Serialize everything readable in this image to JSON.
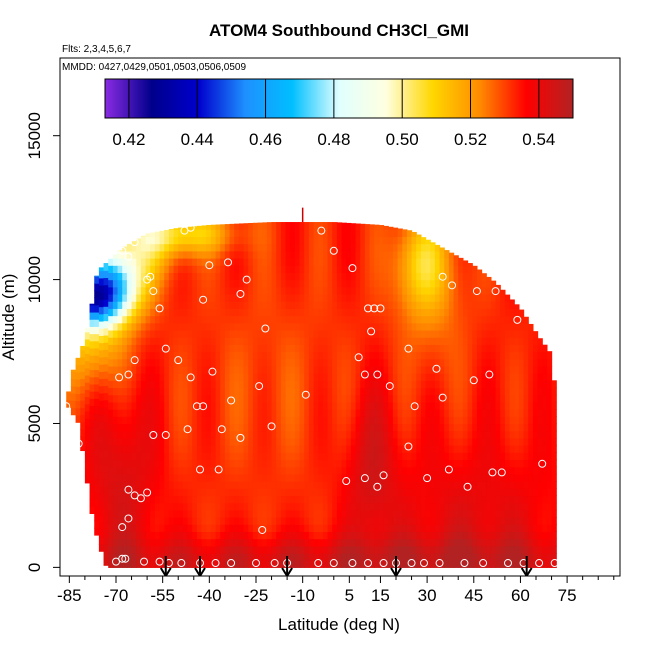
{
  "chart_data": {
    "type": "heatmap",
    "title": "ATOM4 Southbound CH3Cl_GMI",
    "subtitle_flights": "Flts: 2,3,4,5,6,7",
    "subtitle_dates": "MMDD: 0427,0429,0501,0503,0506,0509",
    "xlabel": "Latitude (deg N)",
    "ylabel": "Altitude (m)",
    "xlim": [
      -88,
      92
    ],
    "ylim": [
      -300,
      17700
    ],
    "x_ticks": [
      -85,
      -70,
      -55,
      -40,
      -25,
      -10,
      5,
      15,
      30,
      45,
      60,
      75
    ],
    "x_tick_labels": [
      "-85",
      "-70",
      "-55",
      "-40",
      "-25",
      "-10",
      "5",
      "15",
      "30",
      "45",
      "60",
      "75"
    ],
    "x_minor_ticks": [
      -80,
      -75,
      -65,
      -60,
      -50,
      -45,
      -35,
      -30,
      -20,
      -15,
      -5,
      0,
      10,
      20,
      25,
      35,
      40,
      50,
      55,
      65,
      70,
      80,
      85,
      90
    ],
    "y_ticks": [
      0,
      5000,
      10000,
      15000
    ],
    "y_tick_labels": [
      "0",
      "5000",
      "10000",
      "15000"
    ],
    "colorbar": {
      "range": [
        0.413,
        0.55
      ],
      "ticks": [
        0.42,
        0.44,
        0.46,
        0.48,
        0.5,
        0.52,
        0.54
      ],
      "tick_labels": [
        "0.42",
        "0.44",
        "0.46",
        "0.48",
        "0.50",
        "0.52",
        "0.54"
      ],
      "colors": [
        "#8a2be2",
        "#00008b",
        "#0000cd",
        "#1e90ff",
        "#00bfff",
        "#e0ffff",
        "#ffffe0",
        "#ffd700",
        "#ff8c00",
        "#ff0000",
        "#b22222"
      ]
    },
    "extent": {
      "upper_edge": [
        [
          -86,
          5700
        ],
        [
          -84,
          6800
        ],
        [
          -80,
          7900
        ],
        [
          -78,
          9000
        ],
        [
          -76,
          10300
        ],
        [
          -72,
          10700
        ],
        [
          -68,
          11100
        ],
        [
          -60,
          11600
        ],
        [
          -50,
          11800
        ],
        [
          -40,
          11900
        ],
        [
          -20,
          12000
        ],
        [
          0,
          12000
        ],
        [
          15,
          11900
        ],
        [
          25,
          11700
        ],
        [
          35,
          11100
        ],
        [
          45,
          10500
        ],
        [
          52,
          9900
        ],
        [
          60,
          9000
        ],
        [
          66,
          8000
        ],
        [
          70,
          7400
        ],
        [
          72,
          5000
        ],
        [
          72,
          0
        ]
      ],
      "lower_edge": [
        [
          -86,
          5700
        ],
        [
          -82,
          5000
        ],
        [
          -80,
          3500
        ],
        [
          -78,
          2000
        ],
        [
          -76,
          1000
        ],
        [
          -74,
          300
        ],
        [
          -73,
          0
        ]
      ]
    },
    "field_model": {
      "base": 0.533,
      "blobs": [
        {
          "lat": -72,
          "alt": 9800,
          "sd_lat": 7,
          "sd_alt": 850,
          "amp": -0.06
        },
        {
          "lat": -80,
          "alt": 9300,
          "sd_lat": 7,
          "sd_alt": 650,
          "amp": -0.055
        },
        {
          "lat": -78,
          "alt": 8000,
          "sd_lat": 8,
          "sd_alt": 1300,
          "amp": -0.02
        },
        {
          "lat": -50,
          "alt": 11600,
          "sd_lat": 12,
          "sd_alt": 500,
          "amp": -0.025
        },
        {
          "lat": -63,
          "alt": 11000,
          "sd_lat": 8,
          "sd_alt": 800,
          "amp": -0.018
        },
        {
          "lat": 28,
          "alt": 10600,
          "sd_lat": 6,
          "sd_alt": 1200,
          "amp": -0.02
        },
        {
          "lat": 32,
          "alt": 9500,
          "sd_lat": 8,
          "sd_alt": 2000,
          "amp": -0.008
        },
        {
          "lat": -20,
          "alt": 6500,
          "sd_lat": 18,
          "sd_alt": 2500,
          "amp": -0.004
        },
        {
          "lat": 12,
          "alt": 3500,
          "sd_lat": 6,
          "sd_alt": 2000,
          "amp": 0.01
        },
        {
          "lat": -68,
          "alt": 3000,
          "sd_lat": 8,
          "sd_alt": 2500,
          "amp": 0.01
        },
        {
          "lat": 45,
          "alt": 1500,
          "sd_lat": 20,
          "sd_alt": 2000,
          "amp": 0.008
        },
        {
          "lat": 0,
          "alt": 200,
          "sd_lat": 80,
          "sd_alt": 600,
          "amp": 0.012
        }
      ]
    },
    "sample_points": [
      [
        -86,
        5600
      ],
      [
        -82,
        4300
      ],
      [
        -69,
        6600
      ],
      [
        -66,
        6700
      ],
      [
        -64,
        7200
      ],
      [
        -68,
        11000
      ],
      [
        -66,
        10800
      ],
      [
        -64,
        11300
      ],
      [
        -60,
        10000
      ],
      [
        -58,
        9600
      ],
      [
        -59,
        10100
      ],
      [
        -56,
        9000
      ],
      [
        -48,
        11700
      ],
      [
        -46,
        11800
      ],
      [
        -40,
        10500
      ],
      [
        -34,
        10600
      ],
      [
        -28,
        10000
      ],
      [
        -30,
        9500
      ],
      [
        -42,
        9300
      ],
      [
        -50,
        7200
      ],
      [
        -54,
        7600
      ],
      [
        -46,
        6600
      ],
      [
        -39,
        6800
      ],
      [
        -42,
        5600
      ],
      [
        -44,
        5600
      ],
      [
        -33,
        5800
      ],
      [
        -47,
        4800
      ],
      [
        -36,
        4800
      ],
      [
        -30,
        4500
      ],
      [
        -22,
        8300
      ],
      [
        -24,
        6300
      ],
      [
        -20,
        4900
      ],
      [
        -9,
        6000
      ],
      [
        -4,
        11700
      ],
      [
        0,
        11000
      ],
      [
        6,
        10400
      ],
      [
        11,
        9000
      ],
      [
        13,
        9000
      ],
      [
        15,
        9000
      ],
      [
        12,
        8200
      ],
      [
        8,
        7300
      ],
      [
        10,
        6700
      ],
      [
        14,
        6700
      ],
      [
        18,
        6300
      ],
      [
        24,
        7600
      ],
      [
        33,
        6900
      ],
      [
        26,
        5600
      ],
      [
        35,
        5900
      ],
      [
        24,
        4200
      ],
      [
        29,
        11800
      ],
      [
        35,
        10100
      ],
      [
        38,
        9800
      ],
      [
        46,
        9600
      ],
      [
        52,
        9600
      ],
      [
        59,
        8600
      ],
      [
        45,
        6500
      ],
      [
        50,
        6700
      ],
      [
        -54,
        4600
      ],
      [
        -58,
        4600
      ],
      [
        -66,
        2700
      ],
      [
        -64,
        2500
      ],
      [
        -60,
        2600
      ],
      [
        -62,
        2400
      ],
      [
        -66,
        1700
      ],
      [
        -68,
        1400
      ],
      [
        -43,
        3400
      ],
      [
        -37,
        3400
      ],
      [
        -23,
        1300
      ],
      [
        4,
        3000
      ],
      [
        10,
        3100
      ],
      [
        14,
        2800
      ],
      [
        16,
        3200
      ],
      [
        30,
        3100
      ],
      [
        37,
        3400
      ],
      [
        43,
        2800
      ],
      [
        51,
        3300
      ],
      [
        54,
        3300
      ],
      [
        67,
        3600
      ],
      [
        -70,
        200
      ],
      [
        -68,
        300
      ],
      [
        -67,
        300
      ],
      [
        -61,
        200
      ],
      [
        -56,
        200
      ],
      [
        -53,
        150
      ],
      [
        -49,
        150
      ],
      [
        -43,
        150
      ],
      [
        -38,
        150
      ],
      [
        -33,
        150
      ],
      [
        -25,
        150
      ],
      [
        -19,
        150
      ],
      [
        -15,
        150
      ],
      [
        -5,
        150
      ],
      [
        0,
        150
      ],
      [
        6,
        150
      ],
      [
        11,
        150
      ],
      [
        16,
        150
      ],
      [
        20,
        150
      ],
      [
        25,
        150
      ],
      [
        29,
        150
      ],
      [
        34,
        150
      ],
      [
        42,
        150
      ],
      [
        48,
        150
      ],
      [
        56,
        150
      ],
      [
        61,
        150
      ],
      [
        66,
        150
      ],
      [
        71,
        150
      ],
      [
        72,
        7300
      ]
    ],
    "arrows_latitude": [
      -54,
      -43,
      -15,
      20,
      62
    ],
    "top_marker_latitude": -10
  }
}
